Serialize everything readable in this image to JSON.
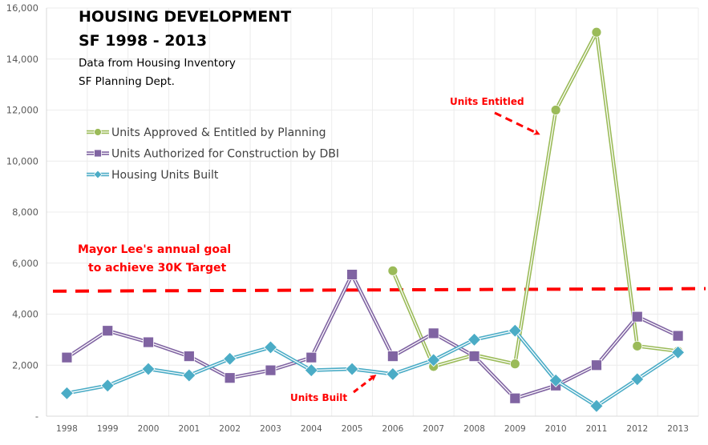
{
  "chart_data": {
    "type": "line",
    "title": "HOUSING DEVELOPMENT",
    "title_line2": "SF 1998 - 2013",
    "subtitle_line1": "Data from Housing Inventory",
    "subtitle_line2": "SF Planning Dept.",
    "xlabel": "",
    "ylabel": "",
    "ylim": [
      0,
      16000
    ],
    "yticks": [
      0,
      2000,
      4000,
      6000,
      8000,
      10000,
      12000,
      14000,
      16000
    ],
    "ytick_labels": [
      "-",
      "2,000",
      "4,000",
      "6,000",
      "8,000",
      "10,000",
      "12,000",
      "14,000",
      "16,000"
    ],
    "grid": true,
    "legend_position": "upper-left",
    "categories": [
      "1998",
      "1999",
      "2000",
      "2001",
      "2002",
      "2003",
      "2004",
      "2005",
      "2006",
      "2007",
      "2008",
      "2009",
      "2010",
      "2011",
      "2012",
      "2013"
    ],
    "series": [
      {
        "name": "Units Approved & Entitled by Planning",
        "color": "#9bbb59",
        "marker": "circle",
        "values": [
          null,
          null,
          null,
          null,
          null,
          null,
          null,
          null,
          5700,
          1950,
          2400,
          2050,
          12000,
          15050,
          2750,
          2550
        ]
      },
      {
        "name": "Units Authorized for Construction by DBI",
        "color": "#8064a2",
        "marker": "square",
        "values": [
          2300,
          3350,
          2900,
          2350,
          1500,
          1800,
          2300,
          5550,
          2350,
          3250,
          2350,
          700,
          1200,
          2000,
          3900,
          3150
        ]
      },
      {
        "name": "Housing Units Built",
        "color": "#4bacc6",
        "marker": "diamond",
        "values": [
          900,
          1200,
          1850,
          1600,
          2250,
          2700,
          1800,
          1850,
          1650,
          2200,
          3000,
          3350,
          1400,
          400,
          1450,
          2500
        ]
      }
    ],
    "reference_line": {
      "label": "Mayor Lee's annual goal to achieve 30K Target",
      "label_line1": "Mayor Lee's annual  goal",
      "label_line2": "to achieve 30K Target",
      "value_start": 4900,
      "value_end": 5000,
      "color": "#ff0000",
      "style": "dashed"
    },
    "annotations": [
      {
        "text": "Units Entitled",
        "color": "#ff0000",
        "points_to": "Units Approved & Entitled by Planning, 2010"
      },
      {
        "text": "Units Built",
        "color": "#ff0000",
        "points_to": "Housing Units Built, 2006"
      }
    ]
  }
}
